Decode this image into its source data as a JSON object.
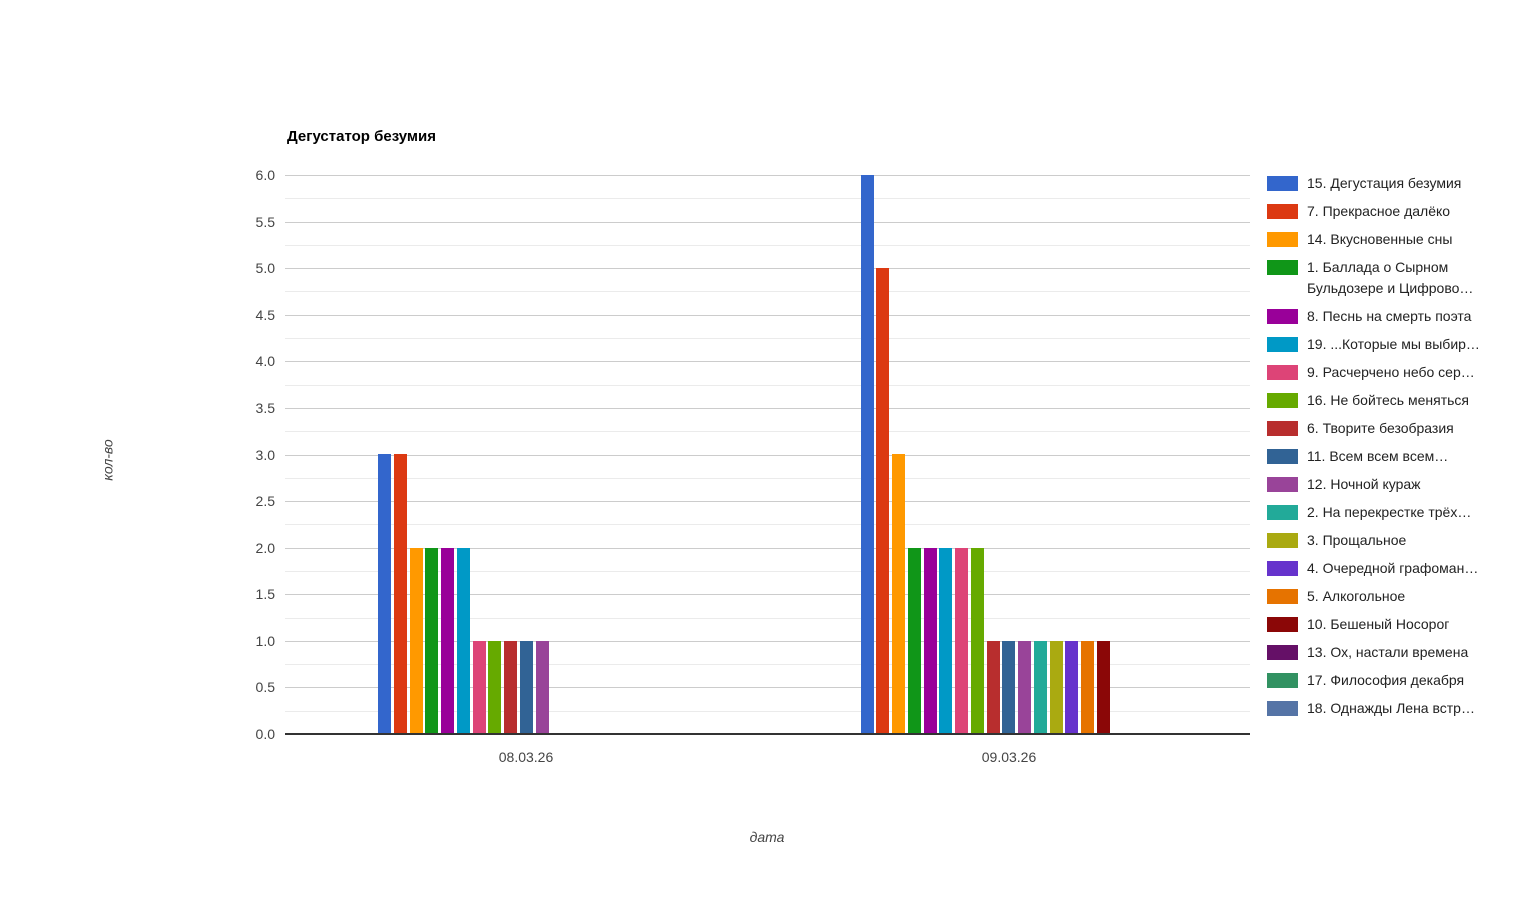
{
  "chart_data": {
    "type": "bar",
    "title": "Дегустатор безумия",
    "xlabel": "дата",
    "ylabel": "кол-во",
    "categories": [
      "08.03.26",
      "09.03.26"
    ],
    "ylim": [
      0,
      6
    ],
    "y_tick_step": 0.5,
    "y_tick_labels": [
      "0.0",
      "0.5",
      "1.0",
      "1.5",
      "2.0",
      "2.5",
      "3.0",
      "3.5",
      "4.0",
      "4.5",
      "5.0",
      "5.5",
      "6.0"
    ],
    "grid": true,
    "legend_position": "right",
    "series": [
      {
        "name": "15. Дегустация безумия",
        "color": "#3366CC",
        "values": [
          3,
          6
        ]
      },
      {
        "name": "7. Прекрасное далёко",
        "color": "#DC3912",
        "values": [
          3,
          5
        ]
      },
      {
        "name": "14. Вкусновенные сны",
        "color": "#FF9900",
        "values": [
          2,
          3
        ]
      },
      {
        "name": "1. Баллада о Сырном Бульдозере и Цифрово…",
        "color": "#109618",
        "values": [
          2,
          2
        ]
      },
      {
        "name": "8. Песнь на смерть поэта",
        "color": "#990099",
        "values": [
          2,
          2
        ]
      },
      {
        "name": "19. ...Которые мы выбир…",
        "color": "#0099C6",
        "values": [
          2,
          2
        ]
      },
      {
        "name": "9. Расчерчено небо сер…",
        "color": "#DD4477",
        "values": [
          1,
          2
        ]
      },
      {
        "name": "16. Не бойтесь меняться",
        "color": "#66AA00",
        "values": [
          1,
          2
        ]
      },
      {
        "name": "6. Творите безобразия",
        "color": "#B82E2E",
        "values": [
          1,
          1
        ]
      },
      {
        "name": "11. Всем всем всем…",
        "color": "#316395",
        "values": [
          1,
          1
        ]
      },
      {
        "name": "12. Ночной кураж",
        "color": "#994499",
        "values": [
          1,
          1
        ]
      },
      {
        "name": "2. На перекрестке трёх…",
        "color": "#22AA99",
        "values": [
          0,
          1
        ]
      },
      {
        "name": "3. Прощальное",
        "color": "#AAAA11",
        "values": [
          0,
          1
        ]
      },
      {
        "name": "4. Очередной графоман…",
        "color": "#6633CC",
        "values": [
          0,
          1
        ]
      },
      {
        "name": "5. Алкогольное",
        "color": "#E67300",
        "values": [
          0,
          1
        ]
      },
      {
        "name": "10. Бешеный Носорог",
        "color": "#8B0707",
        "values": [
          0,
          1
        ]
      },
      {
        "name": "13. Ох, настали времена",
        "color": "#651067",
        "values": [
          0,
          0
        ]
      },
      {
        "name": "17. Философия декабря",
        "color": "#329262",
        "values": [
          0,
          0
        ]
      },
      {
        "name": "18. Однажды Лена встр…",
        "color": "#5574A6",
        "values": [
          0,
          0
        ]
      }
    ]
  },
  "colors": {
    "background": "#ffffff",
    "grid_major": "#cccccc",
    "grid_minor": "#ebebeb",
    "axis_line": "#333333",
    "title_text": "#000000",
    "tick_text": "#444444",
    "legend_text": "#222222"
  }
}
